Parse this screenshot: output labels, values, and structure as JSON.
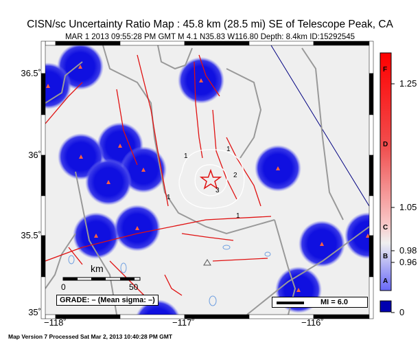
{
  "header": {
    "title": "CISN/sc Uncertainty Ratio Map : 45.8 km (28.5 mi) SE of Telescope Peak, CA",
    "subtitle": "MAR 1 2013 09:55:28 PM GMT   M 4.1   N35.83 W116.80   Depth: 8.4km   ID:15292545"
  },
  "axes": {
    "lat": [
      "36.5˚",
      "36˚",
      "35.5˚",
      "35˚"
    ],
    "lon": [
      "−118˚",
      "−117˚",
      "−116˚"
    ]
  },
  "map": {
    "contour_labels": [
      "1",
      "1",
      "1",
      "1",
      "2",
      "3"
    ],
    "scale_unit": "km",
    "scale_ticks": [
      "0",
      "50"
    ],
    "grade": "GRADE: – (Mean sigma: –)",
    "mi_legend": "MI = 6.0",
    "colors": {
      "fault": "#e01010",
      "road": "#999999",
      "station_halo": "#1010e0",
      "water": "#6f9fe0",
      "background": "#efefef"
    }
  },
  "colorbar": {
    "letters": [
      "F",
      "D",
      "C",
      "B",
      "A"
    ],
    "ticks": [
      "1.25",
      "1.05",
      "0.98",
      "0.96",
      "0"
    ]
  },
  "footer": "Map Version 7 Processed Sat Mar  2, 2013 10:40:28 PM GMT"
}
